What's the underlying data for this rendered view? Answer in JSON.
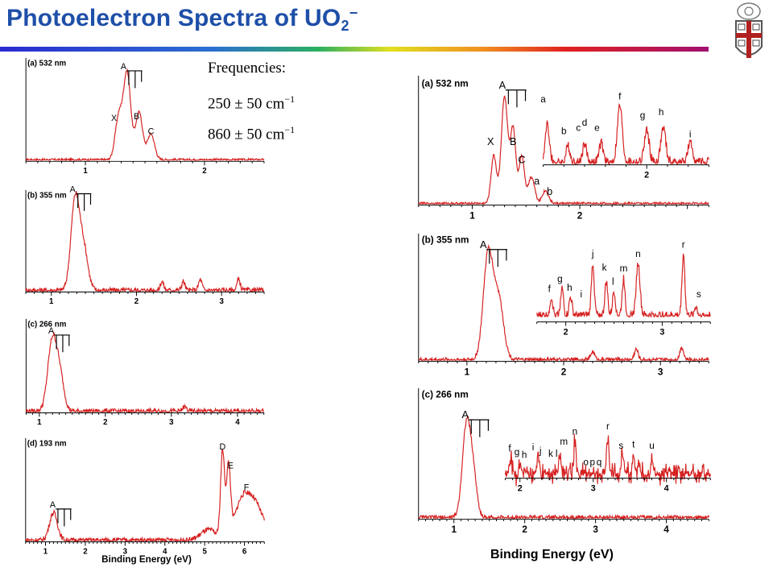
{
  "slide": {
    "title_main": "Photoelectron Spectra of UO",
    "title_sub": "2",
    "title_sup": "−",
    "frequencies_heading": "Frequencies:",
    "frequency_1": "250 ± 50 cm",
    "frequency_2": "860 ± 50 cm",
    "frequency_unit_exp": "−1",
    "right_xlabel": "Binding Energy (eV)",
    "left_xlabel": "Binding Energy (eV)"
  },
  "colors": {
    "title": "#1e4fa8",
    "trace": "#d62020",
    "axis": "#000000",
    "marker": "#1a3fcf"
  },
  "chart_data": [
    {
      "type": "line",
      "panel": "left-a",
      "label": "(a) 532 nm",
      "xlim": [
        0.5,
        2.5
      ],
      "xticks": [
        1,
        2
      ],
      "peaks": [
        {
          "x": 1.35,
          "h": 1.0,
          "w": 0.03
        },
        {
          "x": 1.28,
          "h": 0.5,
          "w": 0.03
        },
        {
          "x": 1.45,
          "h": 0.55,
          "w": 0.03
        },
        {
          "x": 1.55,
          "h": 0.3,
          "w": 0.03
        }
      ],
      "noise": 0.015,
      "annotations": [
        {
          "text": "A",
          "x": 1.32,
          "h": 1.05
        },
        {
          "text": "X",
          "x": 1.24,
          "h": 0.45
        },
        {
          "text": "B",
          "x": 1.43,
          "h": 0.47
        },
        {
          "text": "C",
          "x": 1.55,
          "h": 0.3
        }
      ]
    },
    {
      "type": "line",
      "panel": "left-b",
      "label": "(b) 355 nm",
      "xlim": [
        0.7,
        3.5
      ],
      "xticks": [
        1,
        2,
        3
      ],
      "peaks": [
        {
          "x": 1.28,
          "h": 1.0,
          "w": 0.05
        },
        {
          "x": 1.38,
          "h": 0.45,
          "w": 0.05
        },
        {
          "x": 2.3,
          "h": 0.1,
          "w": 0.02
        },
        {
          "x": 2.55,
          "h": 0.1,
          "w": 0.02
        },
        {
          "x": 2.75,
          "h": 0.12,
          "w": 0.02
        },
        {
          "x": 3.2,
          "h": 0.12,
          "w": 0.02
        }
      ],
      "noise": 0.03,
      "annotations": [
        {
          "text": "A",
          "x": 1.25,
          "h": 1.08
        }
      ]
    },
    {
      "type": "line",
      "panel": "left-c",
      "label": "(c) 266 nm",
      "xlim": [
        0.8,
        4.4
      ],
      "xticks": [
        1,
        2,
        3,
        4
      ],
      "peaks": [
        {
          "x": 1.2,
          "h": 1.0,
          "w": 0.07
        },
        {
          "x": 1.32,
          "h": 0.4,
          "w": 0.06
        },
        {
          "x": 3.2,
          "h": 0.06,
          "w": 0.03
        }
      ],
      "noise": 0.035,
      "annotations": [
        {
          "text": "A",
          "x": 1.18,
          "h": 1.08
        }
      ]
    },
    {
      "type": "line",
      "panel": "left-d",
      "label": "(d) 193 nm",
      "xlim": [
        0.5,
        6.5
      ],
      "xticks": [
        1,
        2,
        3,
        4,
        5,
        6
      ],
      "xlabel": "Binding Energy (eV)",
      "peaks": [
        {
          "x": 1.2,
          "h": 0.32,
          "w": 0.1
        },
        {
          "x": 5.45,
          "h": 1.0,
          "w": 0.05
        },
        {
          "x": 5.6,
          "h": 0.8,
          "w": 0.05
        },
        {
          "x": 5.95,
          "h": 0.45,
          "w": 0.2
        },
        {
          "x": 6.3,
          "h": 0.35,
          "w": 0.2
        },
        {
          "x": 5.1,
          "h": 0.12,
          "w": 0.2
        }
      ],
      "noise": 0.03,
      "annotations": [
        {
          "text": "A",
          "x": 1.18,
          "h": 0.38
        },
        {
          "text": "D",
          "x": 5.45,
          "h": 1.05
        },
        {
          "text": "E",
          "x": 5.65,
          "h": 0.83
        },
        {
          "text": "F",
          "x": 6.05,
          "h": 0.58
        }
      ]
    },
    {
      "type": "line",
      "panel": "right-a",
      "label": "(a) 532 nm",
      "xlim": [
        0.5,
        3.2
      ],
      "xticks": [
        1,
        2
      ],
      "peaks": [
        {
          "x": 1.2,
          "h": 0.45,
          "w": 0.025
        },
        {
          "x": 1.3,
          "h": 1.0,
          "w": 0.03
        },
        {
          "x": 1.38,
          "h": 0.7,
          "w": 0.025
        },
        {
          "x": 1.46,
          "h": 0.45,
          "w": 0.025
        },
        {
          "x": 1.55,
          "h": 0.25,
          "w": 0.03
        },
        {
          "x": 1.68,
          "h": 0.12,
          "w": 0.03
        }
      ],
      "noise": 0.012,
      "annotations": [
        {
          "text": "A",
          "x": 1.28,
          "h": 1.08
        },
        {
          "text": "X",
          "x": 1.17,
          "h": 0.55
        },
        {
          "text": "B",
          "x": 1.38,
          "h": 0.55
        },
        {
          "text": "C",
          "x": 1.46,
          "h": 0.38
        },
        {
          "text": "a",
          "x": 1.6,
          "h": 0.18
        },
        {
          "text": "b",
          "x": 1.72,
          "h": 0.08
        }
      ],
      "inset": {
        "xlim": [
          1.5,
          2.3
        ],
        "xticks": [
          2
        ],
        "peaks": [
          {
            "x": 1.52,
            "h": 0.6,
            "w": 0.01
          },
          {
            "x": 1.62,
            "h": 0.25,
            "w": 0.01
          },
          {
            "x": 1.7,
            "h": 0.3,
            "w": 0.01
          },
          {
            "x": 1.78,
            "h": 0.3,
            "w": 0.01
          },
          {
            "x": 1.87,
            "h": 0.9,
            "w": 0.012
          },
          {
            "x": 2.0,
            "h": 0.5,
            "w": 0.012
          },
          {
            "x": 2.08,
            "h": 0.55,
            "w": 0.012
          },
          {
            "x": 2.21,
            "h": 0.3,
            "w": 0.012
          }
        ],
        "noise": 0.08,
        "annotations": [
          {
            "text": "a",
            "x": 1.5,
            "h": 0.95
          },
          {
            "text": "b",
            "x": 1.6,
            "h": 0.45
          },
          {
            "text": "c",
            "x": 1.67,
            "h": 0.5
          },
          {
            "text": "d",
            "x": 1.7,
            "h": 0.58
          },
          {
            "text": "e",
            "x": 1.76,
            "h": 0.5
          },
          {
            "text": "f",
            "x": 1.87,
            "h": 1.0
          },
          {
            "text": "g",
            "x": 1.98,
            "h": 0.7
          },
          {
            "text": "h",
            "x": 2.07,
            "h": 0.75
          },
          {
            "text": "i",
            "x": 2.21,
            "h": 0.4
          }
        ]
      }
    },
    {
      "type": "line",
      "panel": "right-b",
      "label": "(b) 355 nm",
      "xlim": [
        0.5,
        3.5
      ],
      "xticks": [
        1,
        2,
        3
      ],
      "peaks": [
        {
          "x": 1.22,
          "h": 1.0,
          "w": 0.05
        },
        {
          "x": 1.33,
          "h": 0.55,
          "w": 0.05
        },
        {
          "x": 2.3,
          "h": 0.08,
          "w": 0.02
        },
        {
          "x": 2.75,
          "h": 0.1,
          "w": 0.02
        },
        {
          "x": 3.22,
          "h": 0.12,
          "w": 0.02
        }
      ],
      "noise": 0.02,
      "annotations": [
        {
          "text": "A",
          "x": 1.17,
          "h": 1.05
        }
      ],
      "inset": {
        "xlim": [
          1.7,
          3.5
        ],
        "xticks": [
          2,
          3
        ],
        "peaks": [
          {
            "x": 1.85,
            "h": 0.3,
            "w": 0.015
          },
          {
            "x": 1.96,
            "h": 0.45,
            "w": 0.015
          },
          {
            "x": 2.05,
            "h": 0.3,
            "w": 0.015
          },
          {
            "x": 2.28,
            "h": 0.85,
            "w": 0.015
          },
          {
            "x": 2.42,
            "h": 0.55,
            "w": 0.015
          },
          {
            "x": 2.5,
            "h": 0.4,
            "w": 0.015
          },
          {
            "x": 2.6,
            "h": 0.6,
            "w": 0.015
          },
          {
            "x": 2.75,
            "h": 0.85,
            "w": 0.02
          },
          {
            "x": 3.22,
            "h": 1.0,
            "w": 0.015
          },
          {
            "x": 3.35,
            "h": 0.15,
            "w": 0.015
          }
        ],
        "noise": 0.07,
        "annotations": [
          {
            "text": "f",
            "x": 1.83,
            "h": 0.38
          },
          {
            "text": "g",
            "x": 1.94,
            "h": 0.55
          },
          {
            "text": "h",
            "x": 2.04,
            "h": 0.4
          },
          {
            "text": "i",
            "x": 2.16,
            "h": 0.3
          },
          {
            "text": "j",
            "x": 2.28,
            "h": 0.95
          },
          {
            "text": "k",
            "x": 2.4,
            "h": 0.73
          },
          {
            "text": "l",
            "x": 2.49,
            "h": 0.5
          },
          {
            "text": "m",
            "x": 2.6,
            "h": 0.72
          },
          {
            "text": "n",
            "x": 2.75,
            "h": 0.95
          },
          {
            "text": "r",
            "x": 3.22,
            "h": 1.1
          },
          {
            "text": "s",
            "x": 3.38,
            "h": 0.3
          }
        ]
      }
    },
    {
      "type": "line",
      "panel": "right-c",
      "label": "(c) 266 nm",
      "xlim": [
        0.5,
        4.6
      ],
      "xticks": [
        1,
        2,
        3,
        4
      ],
      "peaks": [
        {
          "x": 1.18,
          "h": 1.0,
          "w": 0.06
        },
        {
          "x": 1.28,
          "h": 0.35,
          "w": 0.05
        }
      ],
      "noise": 0.025,
      "annotations": [
        {
          "text": "A",
          "x": 1.16,
          "h": 1.05
        }
      ],
      "inset": {
        "xlim": [
          1.8,
          4.6
        ],
        "xticks": [
          2,
          3,
          4
        ],
        "peaks": [
          {
            "x": 1.88,
            "h": 0.3,
            "w": 0.015
          },
          {
            "x": 2.0,
            "h": 0.2,
            "w": 0.015
          },
          {
            "x": 2.25,
            "h": 0.3,
            "w": 0.015
          },
          {
            "x": 2.55,
            "h": 0.4,
            "w": 0.015
          },
          {
            "x": 2.75,
            "h": 0.55,
            "w": 0.015
          },
          {
            "x": 3.2,
            "h": 0.65,
            "w": 0.015
          },
          {
            "x": 3.4,
            "h": 0.35,
            "w": 0.015
          },
          {
            "x": 3.55,
            "h": 0.35,
            "w": 0.015
          },
          {
            "x": 3.8,
            "h": 0.3,
            "w": 0.015
          }
        ],
        "noise": 0.25,
        "annotations": [
          {
            "text": "f",
            "x": 1.86,
            "h": 0.4
          },
          {
            "text": "g",
            "x": 1.96,
            "h": 0.33
          },
          {
            "text": "h",
            "x": 2.06,
            "h": 0.28
          },
          {
            "text": "i",
            "x": 2.18,
            "h": 0.42
          },
          {
            "text": "j",
            "x": 2.28,
            "h": 0.35
          },
          {
            "text": "k",
            "x": 2.42,
            "h": 0.3
          },
          {
            "text": "l",
            "x": 2.5,
            "h": 0.3
          },
          {
            "text": "m",
            "x": 2.6,
            "h": 0.52
          },
          {
            "text": "n",
            "x": 2.75,
            "h": 0.7
          },
          {
            "text": "o",
            "x": 2.9,
            "h": 0.15
          },
          {
            "text": "p",
            "x": 2.99,
            "h": 0.15
          },
          {
            "text": "q",
            "x": 3.08,
            "h": 0.15
          },
          {
            "text": "r",
            "x": 3.2,
            "h": 0.8
          },
          {
            "text": "s",
            "x": 3.38,
            "h": 0.45
          },
          {
            "text": "t",
            "x": 3.55,
            "h": 0.47
          },
          {
            "text": "u",
            "x": 3.8,
            "h": 0.45
          }
        ]
      }
    }
  ]
}
